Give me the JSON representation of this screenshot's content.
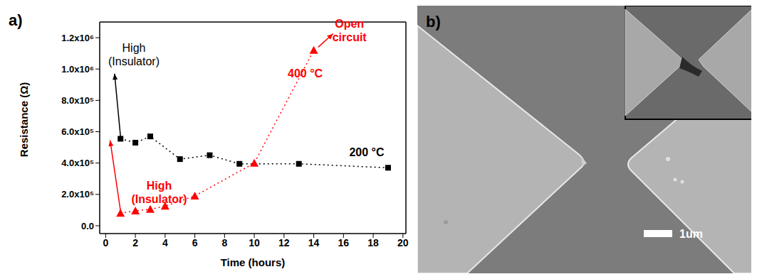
{
  "chart_data": {
    "type": "line",
    "title": "a)",
    "x_label": "Time (hours)",
    "y_label": "Resistance (Ω)",
    "xlim": [
      -0.4,
      20.2
    ],
    "xticks": [
      0,
      2,
      4,
      6,
      8,
      10,
      12,
      14,
      16,
      18,
      20
    ],
    "ylim": [
      -50000,
      1300000
    ],
    "yticks": [
      {
        "value": 0,
        "label": "0.0"
      },
      {
        "value": 200000,
        "label": "2.0x10⁵"
      },
      {
        "value": 400000,
        "label": "4.0x10⁵"
      },
      {
        "value": 600000,
        "label": "6.0x10⁵"
      },
      {
        "value": 800000,
        "label": "8.0x10⁵"
      },
      {
        "value": 1000000,
        "label": "1.0x10⁶"
      },
      {
        "value": 1200000,
        "label": "1.2x10⁶"
      }
    ],
    "grid": false,
    "series": [
      {
        "name": "200 °C",
        "color": "#000000",
        "marker": "square",
        "line_style": "dotted",
        "x": [
          1,
          2,
          3,
          5,
          7,
          9,
          13,
          19
        ],
        "values": [
          555000,
          530000,
          570000,
          425000,
          450000,
          395000,
          395000,
          370000
        ]
      },
      {
        "name": "400 °C",
        "color": "#ff0000",
        "marker": "triangle",
        "line_style": "dotted",
        "x": [
          1,
          2,
          3,
          4,
          6,
          10,
          14
        ],
        "values": [
          80000,
          95000,
          105000,
          125000,
          190000,
          400000,
          1120000
        ]
      }
    ],
    "annotations": [
      {
        "text": "High\n(Insulator)",
        "color": "#000000",
        "x": 1.9,
        "y": 1110000,
        "arrow_from": [
          1,
          570000
        ],
        "arrow_to": [
          0.6,
          970000
        ]
      },
      {
        "text": "High\n(Insulator)",
        "color": "#ff0000",
        "x": 3.6,
        "y": 230000,
        "arrow_from": [
          1,
          95000
        ],
        "arrow_to": [
          0.3,
          545000
        ]
      },
      {
        "text": "Open\ncircuit",
        "color": "#ff0000",
        "x": 16.4,
        "y": 1265000,
        "arrow_from": [
          14.3,
          1140000
        ],
        "arrow_to": [
          15.3,
          1225000
        ]
      }
    ]
  },
  "panel_b": {
    "label": "b)",
    "scale_bar": "1um"
  }
}
